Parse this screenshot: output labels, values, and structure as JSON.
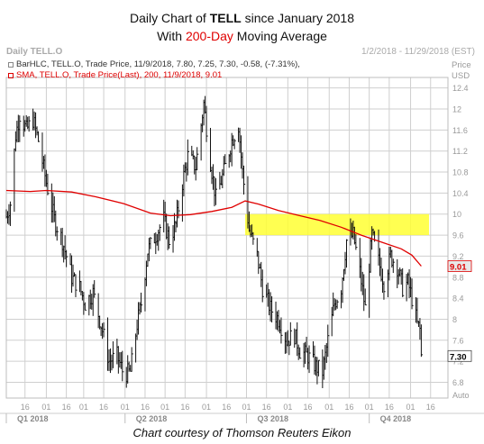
{
  "title": {
    "prefix": "Daily Chart of ",
    "ticker": "TELL",
    "suffix": " since January 2018",
    "line2_prefix": "With ",
    "line2_highlight": "200-Day",
    "line2_suffix": " Moving Average"
  },
  "header": {
    "left": "Daily TELL.O",
    "right": "1/2/2018 - 11/29/2018 (EST)"
  },
  "legend": {
    "bar": "BarHLC, TELL.O, Trade Price, 11/9/2018, 7.80, 7.25, 7.30, -0.58, (-7.31%),",
    "sma": "SMA, TELL.O, Trade Price(Last), 200, 11/9/2018, 9.01"
  },
  "caption": "Chart courtesy of Thomson Reuters Eikon",
  "colors": {
    "bars": "#111111",
    "sma": "#e00000",
    "highlight": "#ffff33",
    "grid": "#cfcfcf",
    "axis_text": "#9a9a9a",
    "title_accent": "#e00000"
  },
  "chart_data": {
    "type": "bar",
    "subtype": "ohlc_hlc_with_moving_average",
    "title": "Daily Chart of TELL since January 2018 With 200-Day Moving Average",
    "ylabel": "Price USD",
    "ylim": [
      6.5,
      12.6
    ],
    "y_ticks": [
      "12.4",
      "12",
      "11.6",
      "11.2",
      "10.8",
      "10.4",
      "10",
      "9.6",
      "9.2",
      "8.8",
      "8.4",
      "8",
      "7.6",
      "7.2",
      "6.8"
    ],
    "y_unit": "USD",
    "x_tick_labels": [
      "16",
      "01",
      "16",
      "01",
      "16",
      "01",
      "16",
      "01",
      "16",
      "01",
      "16",
      "01",
      "16",
      "01",
      "16",
      "01",
      "16",
      "01",
      "16",
      "01",
      "16"
    ],
    "x_quarter_labels": [
      "Q1 2018",
      "Q2 2018",
      "Q3 2018",
      "Q4 2018"
    ],
    "x_axis_button": "Auto",
    "date_range": [
      "2018-01-02",
      "2018-11-09"
    ],
    "price_path": [
      [
        "2018-01-02",
        9.95
      ],
      [
        "2018-01-05",
        10.2
      ],
      [
        "2018-01-09",
        11.5
      ],
      [
        "2018-01-12",
        11.9
      ],
      [
        "2018-01-17",
        11.6
      ],
      [
        "2018-01-22",
        11.8
      ],
      [
        "2018-01-26",
        11.4
      ],
      [
        "2018-02-01",
        10.6
      ],
      [
        "2018-02-07",
        9.9
      ],
      [
        "2018-02-13",
        9.5
      ],
      [
        "2018-02-20",
        8.8
      ],
      [
        "2018-02-26",
        8.6
      ],
      [
        "2018-03-02",
        8.3
      ],
      [
        "2018-03-08",
        8.5
      ],
      [
        "2018-03-14",
        7.9
      ],
      [
        "2018-03-20",
        7.2
      ],
      [
        "2018-03-26",
        7.3
      ],
      [
        "2018-03-31",
        6.95
      ],
      [
        "2018-04-05",
        7.0
      ],
      [
        "2018-04-10",
        7.9
      ],
      [
        "2018-04-13",
        8.3
      ],
      [
        "2018-04-18",
        9.3
      ],
      [
        "2018-04-24",
        9.6
      ],
      [
        "2018-04-30",
        9.9
      ],
      [
        "2018-05-04",
        9.5
      ],
      [
        "2018-05-09",
        9.8
      ],
      [
        "2018-05-14",
        10.6
      ],
      [
        "2018-05-18",
        11.1
      ],
      [
        "2018-05-24",
        10.9
      ],
      [
        "2018-05-30",
        12.1
      ],
      [
        "2018-06-04",
        11.0
      ],
      [
        "2018-06-08",
        10.3
      ],
      [
        "2018-06-14",
        10.8
      ],
      [
        "2018-06-20",
        11.4
      ],
      [
        "2018-06-25",
        11.7
      ],
      [
        "2018-06-28",
        10.8
      ],
      [
        "2018-07-03",
        9.7
      ],
      [
        "2018-07-09",
        9.2
      ],
      [
        "2018-07-13",
        8.6
      ],
      [
        "2018-07-19",
        8.2
      ],
      [
        "2018-07-25",
        8.0
      ],
      [
        "2018-07-31",
        7.6
      ],
      [
        "2018-08-06",
        7.7
      ],
      [
        "2018-08-10",
        7.4
      ],
      [
        "2018-08-16",
        7.3
      ],
      [
        "2018-08-22",
        7.1
      ],
      [
        "2018-08-27",
        7.0
      ],
      [
        "2018-08-31",
        7.6
      ],
      [
        "2018-09-05",
        8.3
      ],
      [
        "2018-09-10",
        8.6
      ],
      [
        "2018-09-14",
        9.5
      ],
      [
        "2018-09-19",
        9.6
      ],
      [
        "2018-09-24",
        8.9
      ],
      [
        "2018-09-28",
        8.2
      ],
      [
        "2018-10-03",
        9.6
      ],
      [
        "2018-10-08",
        9.1
      ],
      [
        "2018-10-12",
        8.7
      ],
      [
        "2018-10-17",
        9.2
      ],
      [
        "2018-10-22",
        9.0
      ],
      [
        "2018-10-26",
        8.6
      ],
      [
        "2018-10-30",
        8.7
      ],
      [
        "2018-11-02",
        8.4
      ],
      [
        "2018-11-06",
        7.9
      ],
      [
        "2018-11-08",
        7.8
      ],
      [
        "2018-11-09",
        7.3
      ]
    ],
    "sma_200_path": [
      [
        "2018-01-02",
        10.45
      ],
      [
        "2018-01-20",
        10.43
      ],
      [
        "2018-02-01",
        10.45
      ],
      [
        "2018-02-20",
        10.42
      ],
      [
        "2018-03-10",
        10.33
      ],
      [
        "2018-03-31",
        10.2
      ],
      [
        "2018-04-20",
        10.02
      ],
      [
        "2018-05-05",
        9.97
      ],
      [
        "2018-05-20",
        9.99
      ],
      [
        "2018-06-05",
        10.05
      ],
      [
        "2018-06-20",
        10.13
      ],
      [
        "2018-06-30",
        10.25
      ],
      [
        "2018-07-10",
        10.19
      ],
      [
        "2018-07-25",
        10.07
      ],
      [
        "2018-08-10",
        9.97
      ],
      [
        "2018-08-25",
        9.88
      ],
      [
        "2018-09-10",
        9.75
      ],
      [
        "2018-09-25",
        9.6
      ],
      [
        "2018-10-10",
        9.47
      ],
      [
        "2018-10-25",
        9.34
      ],
      [
        "2018-11-02",
        9.22
      ],
      [
        "2018-11-09",
        9.01
      ]
    ],
    "highlight_band": {
      "y_range": [
        9.6,
        10.0
      ],
      "x_range": [
        "2018-06-30",
        "2018-11-30"
      ]
    },
    "last_values": {
      "sma": "9.01",
      "price": "7.30"
    },
    "ohlc_last": {
      "date": "11/9/2018",
      "high": 7.8,
      "low": 7.25,
      "close": 7.3,
      "change": -0.58,
      "change_pct": -7.31
    },
    "sma_period": 200,
    "grid": true,
    "legend_position": "top-left"
  }
}
